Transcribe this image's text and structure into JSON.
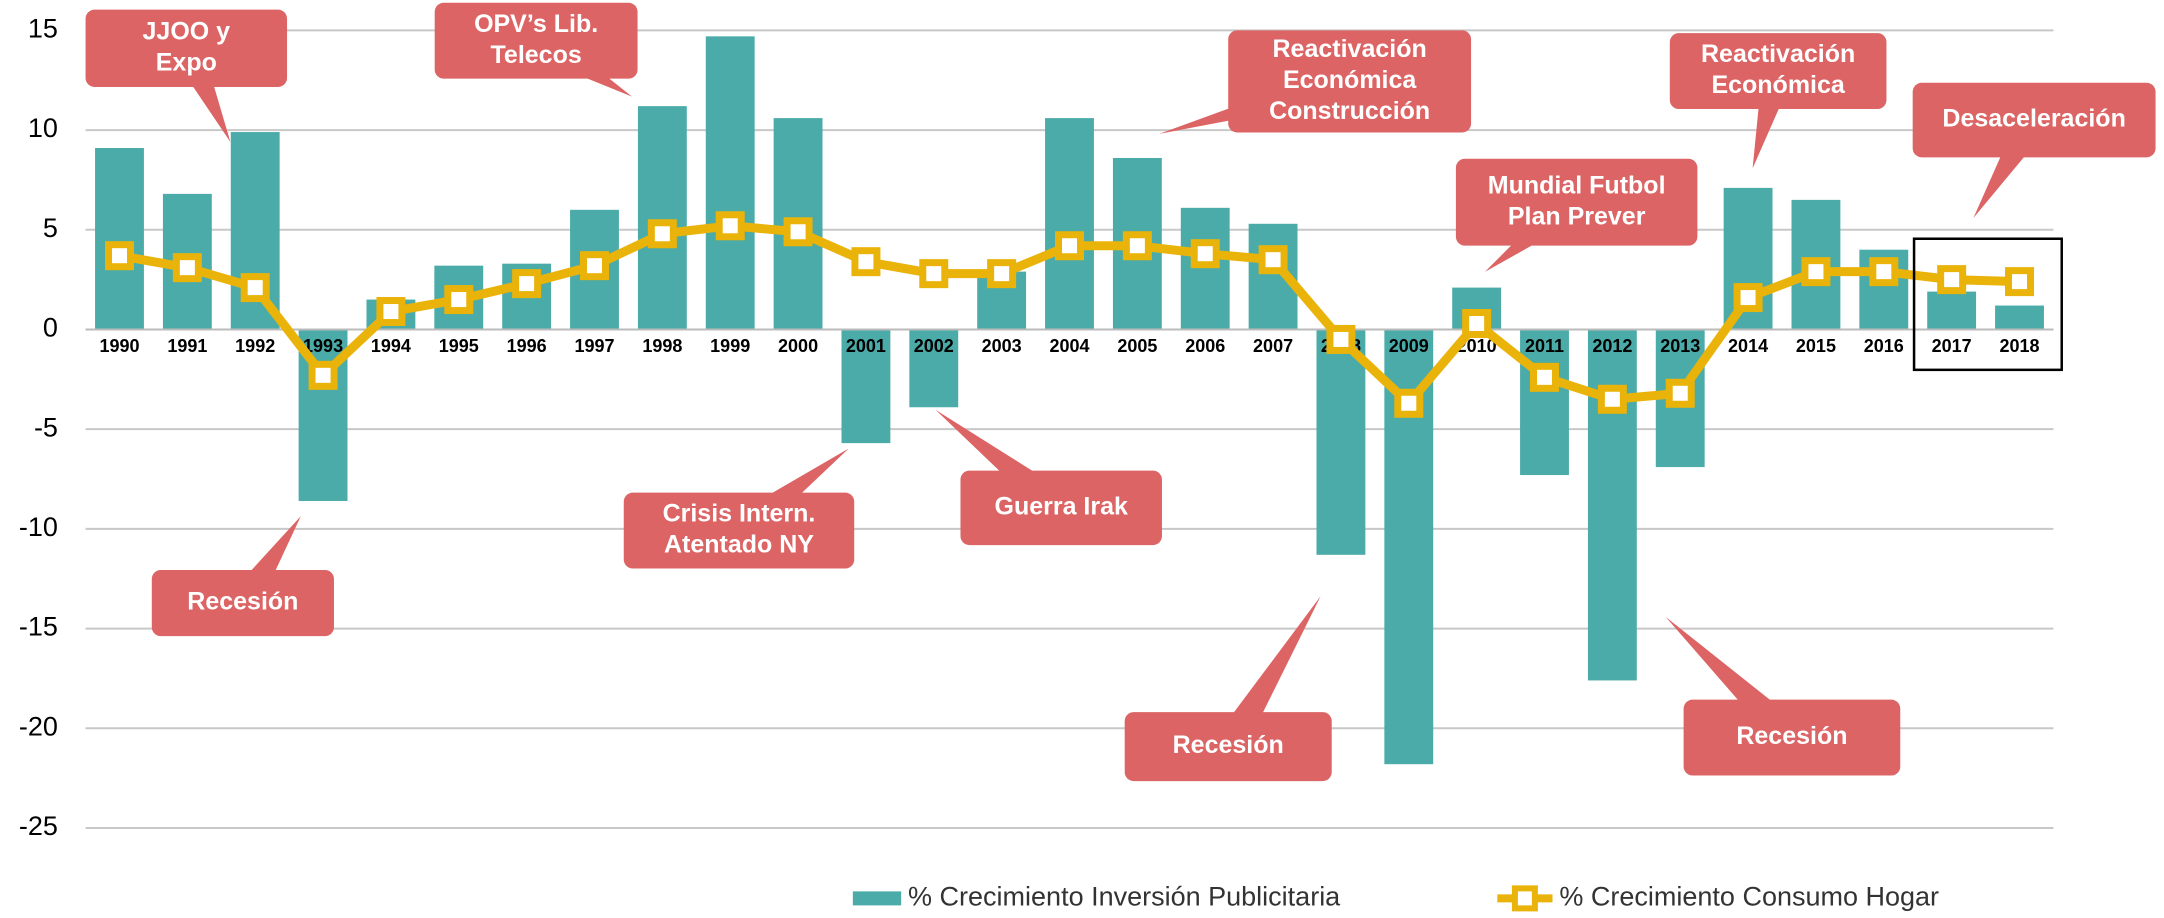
{
  "chart_data": {
    "type": "bar_line",
    "categories": [
      "1990",
      "1991",
      "1992",
      "1993",
      "1994",
      "1995",
      "1996",
      "1997",
      "1998",
      "1999",
      "2000",
      "2001",
      "2002",
      "2003",
      "2004",
      "2005",
      "2006",
      "2007",
      "2008",
      "2009",
      "2010",
      "2011",
      "2012",
      "2013",
      "2014",
      "2015",
      "2016",
      "2017",
      "2018"
    ],
    "series": [
      {
        "name": "% Crecimiento Inversión Publicitaria",
        "type": "bar",
        "color": "#4aaba8",
        "values": [
          9.1,
          6.8,
          9.9,
          -8.6,
          1.5,
          3.2,
          3.3,
          6.0,
          11.2,
          14.7,
          10.6,
          -5.7,
          -3.9,
          2.9,
          10.6,
          8.6,
          6.1,
          5.3,
          -11.3,
          -21.8,
          2.1,
          -7.3,
          -17.6,
          -6.9,
          7.1,
          6.5,
          4.0,
          1.9,
          1.2
        ]
      },
      {
        "name": "% Crecimiento Consumo Hogar",
        "type": "line",
        "color": "#eab30a",
        "values": [
          3.7,
          3.1,
          2.1,
          -2.3,
          0.9,
          1.5,
          2.3,
          3.2,
          4.8,
          5.2,
          4.9,
          3.4,
          2.8,
          2.8,
          4.2,
          4.2,
          3.8,
          3.5,
          -0.5,
          -3.7,
          0.3,
          -2.4,
          -3.5,
          -3.2,
          1.6,
          2.9,
          2.9,
          2.5,
          2.4
        ]
      }
    ],
    "ylim": [
      -25,
      15
    ],
    "yticks": [
      -25,
      -20,
      -15,
      -10,
      -5,
      0,
      5,
      10,
      15
    ],
    "grid": true,
    "legend": "bottom",
    "annotations": [
      {
        "lines": [
          "JJOO y",
          "Expo"
        ]
      },
      {
        "lines": [
          "OPV’s Lib.",
          "Telecos"
        ]
      },
      {
        "lines": [
          "Reactivación",
          "Económica",
          "Construcción"
        ]
      },
      {
        "lines": [
          "Reactivación",
          "Económica"
        ]
      },
      {
        "lines": [
          "Desaceleración"
        ]
      },
      {
        "lines": [
          "Mundial Futbol",
          "Plan Prever"
        ]
      },
      {
        "lines": [
          "Recesión"
        ]
      },
      {
        "lines": [
          "Crisis Intern.",
          "Atentado NY"
        ]
      },
      {
        "lines": [
          "Guerra Irak"
        ]
      },
      {
        "lines": [
          "Recesión"
        ]
      },
      {
        "lines": [
          "Recesión"
        ]
      }
    ]
  }
}
